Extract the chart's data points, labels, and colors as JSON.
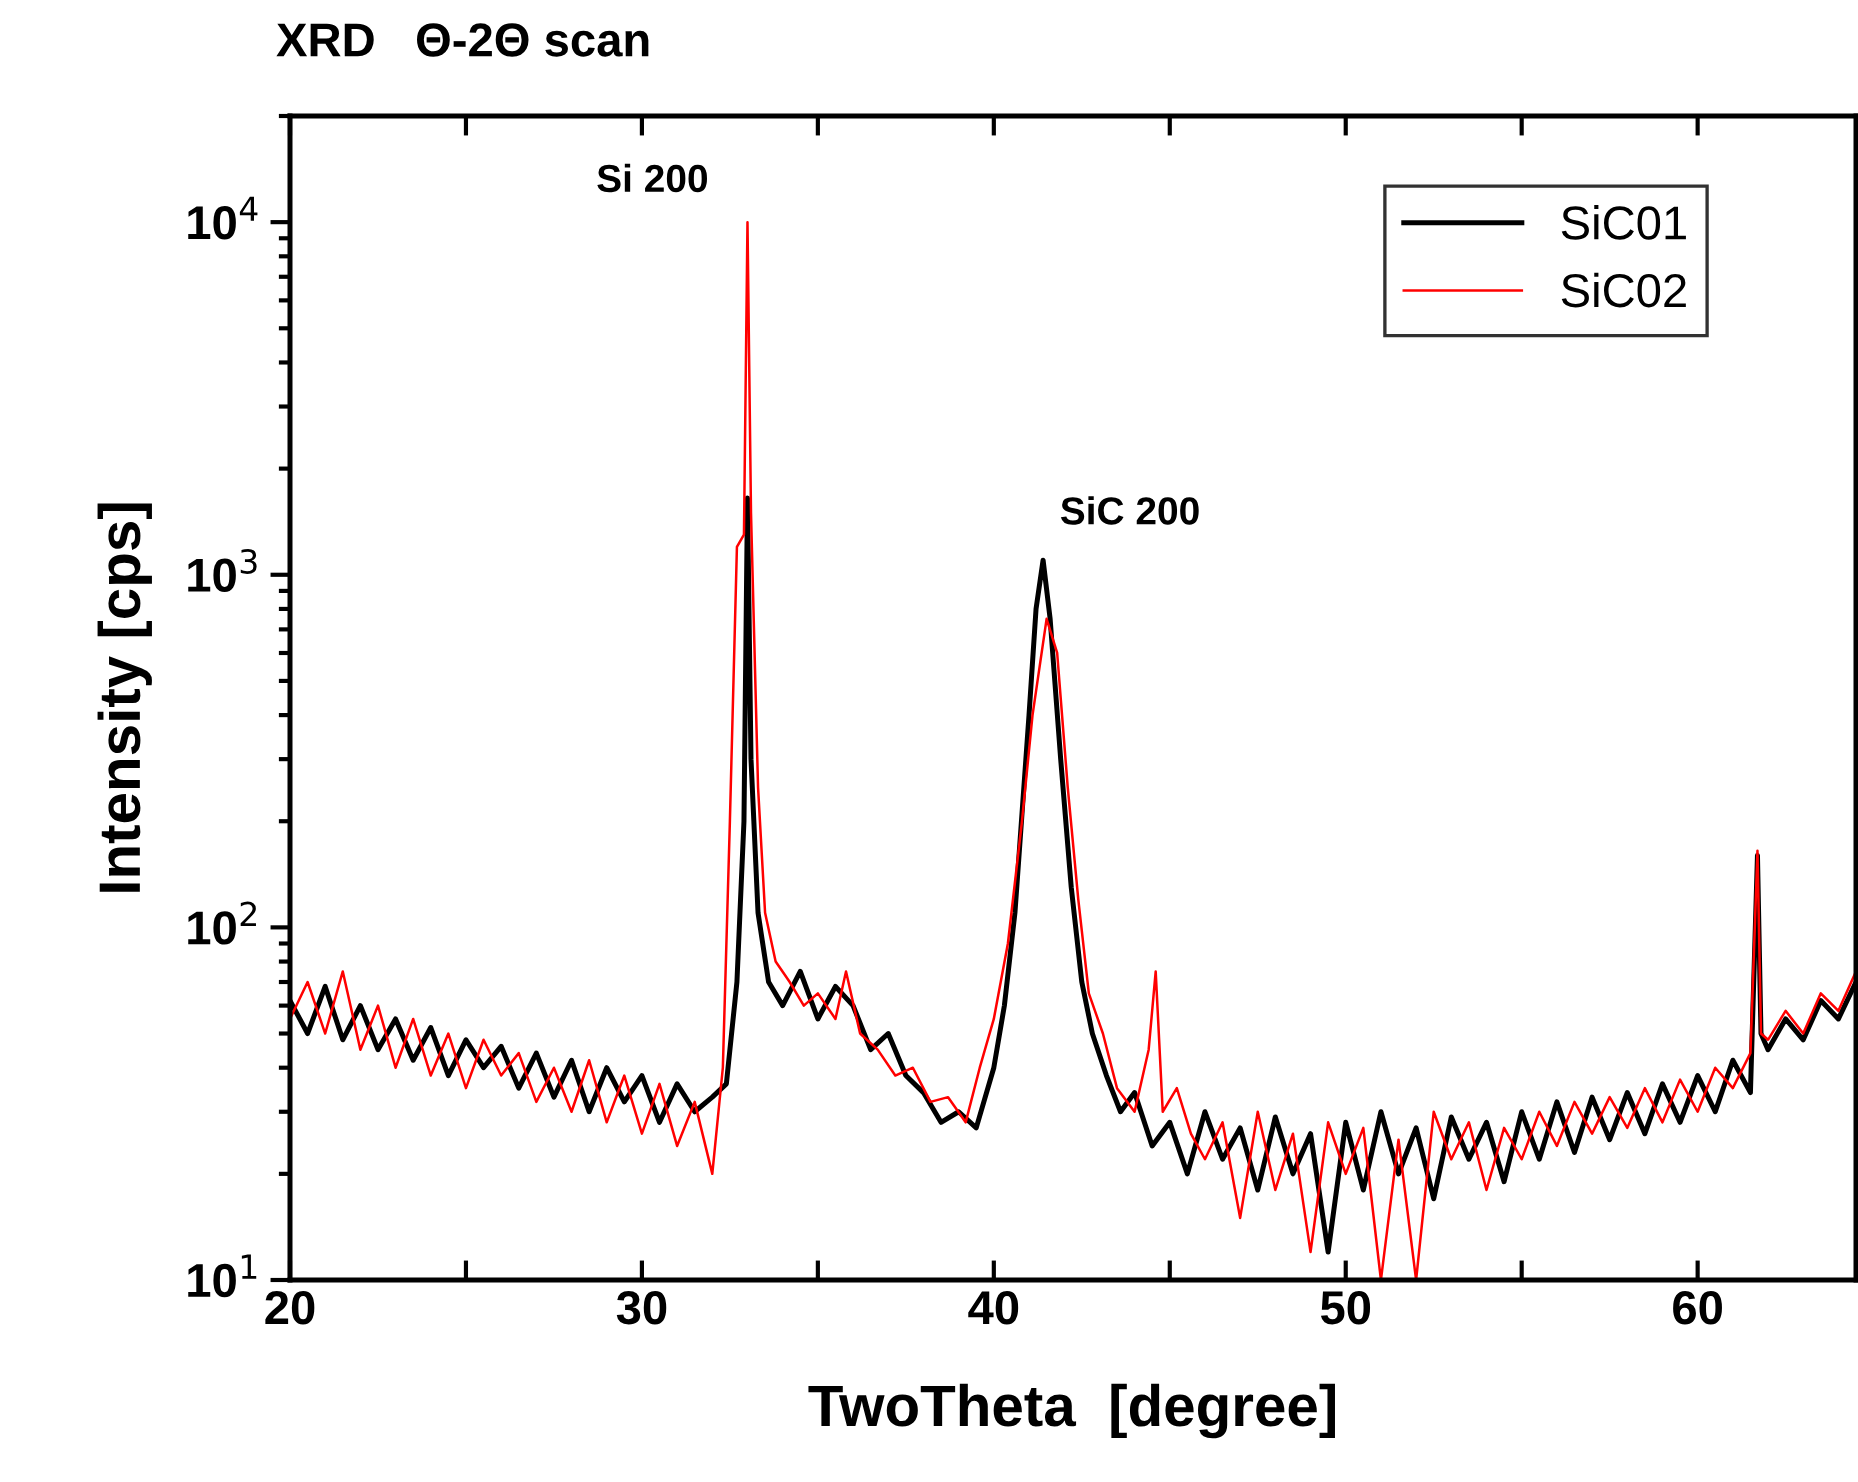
{
  "chart_data": {
    "type": "line",
    "title": "XRD   Θ-2Θ scan",
    "xlabel": "TwoTheta  [degree]",
    "ylabel": "Intensity [cps]",
    "log": "y",
    "xlim": [
      20,
      64.5
    ],
    "ylim": [
      10,
      20000
    ],
    "xticks": [
      20,
      {
        "value": 25,
        "label": null
      },
      30,
      {
        "value": 35,
        "label": null
      },
      40,
      {
        "value": 45,
        "label": null
      },
      50,
      {
        "value": 55,
        "label": null
      },
      60
    ],
    "yticks": [
      {
        "value": 10,
        "label": "10$^{1}$"
      },
      {
        "value": 100,
        "label": "10$^{2}$"
      },
      {
        "value": 1000,
        "label": "10$^{3}$"
      },
      {
        "value": 10000,
        "label": "10$^{4}$"
      }
    ],
    "grid": false,
    "legend": "top right",
    "line_style": "solid",
    "marker": "none",
    "annotations": [
      {
        "text": "Si 200",
        "x": 33.0,
        "y": 10000
      },
      {
        "text": "SiC 200",
        "x": 41.4,
        "y": 1100
      }
    ],
    "series": [
      {
        "name": "SiC01",
        "color": "#000000",
        "x": [
          20,
          20.5,
          21,
          21.5,
          22,
          22.5,
          23,
          23.5,
          24,
          24.5,
          25,
          25.5,
          26,
          26.5,
          27,
          27.5,
          28,
          28.5,
          29,
          29.5,
          30,
          30.5,
          31,
          31.5,
          32,
          32.4,
          32.7,
          32.9,
          33.0,
          33.1,
          33.3,
          33.6,
          34,
          34.5,
          35,
          35.5,
          36,
          36.5,
          37,
          37.5,
          38,
          38.5,
          39,
          39.5,
          40,
          40.3,
          40.6,
          41,
          41.2,
          41.4,
          41.6,
          41.9,
          42.2,
          42.5,
          42.8,
          43.2,
          43.6,
          44,
          44.5,
          45,
          45.5,
          46,
          46.5,
          47,
          47.5,
          48,
          48.5,
          49,
          49.5,
          50,
          50.5,
          51,
          51.5,
          52,
          52.5,
          53,
          53.5,
          54,
          54.5,
          55,
          55.5,
          56,
          56.5,
          57,
          57.5,
          58,
          58.5,
          59,
          59.5,
          60,
          60.5,
          61,
          61.5,
          61.7,
          61.8,
          62,
          62.5,
          63,
          63.5,
          64,
          64.5
        ],
        "values": [
          62,
          50,
          68,
          48,
          60,
          45,
          55,
          42,
          52,
          38,
          48,
          40,
          46,
          35,
          44,
          33,
          42,
          30,
          40,
          32,
          38,
          28,
          36,
          30,
          33,
          36,
          70,
          200,
          1650,
          300,
          110,
          70,
          60,
          75,
          55,
          68,
          60,
          45,
          50,
          38,
          34,
          28,
          30,
          27,
          40,
          60,
          110,
          400,
          800,
          1100,
          750,
          300,
          130,
          70,
          50,
          38,
          30,
          34,
          24,
          28,
          20,
          30,
          22,
          27,
          18,
          29,
          20,
          26,
          12,
          28,
          18,
          30,
          20,
          27,
          17,
          29,
          22,
          28,
          19,
          30,
          22,
          32,
          23,
          33,
          25,
          34,
          26,
          36,
          28,
          38,
          30,
          42,
          34,
          160,
          50,
          45,
          55,
          48,
          62,
          55,
          70
        ]
      },
      {
        "name": "SiC02",
        "color": "#ff0000",
        "x": [
          20,
          20.5,
          21,
          21.5,
          22,
          22.5,
          23,
          23.5,
          24,
          24.5,
          25,
          25.5,
          26,
          26.5,
          27,
          27.5,
          28,
          28.5,
          29,
          29.5,
          30,
          30.5,
          31,
          31.5,
          32,
          32.3,
          32.5,
          32.7,
          32.9,
          33.0,
          33.1,
          33.3,
          33.5,
          33.8,
          34.2,
          34.6,
          35,
          35.5,
          35.8,
          36.2,
          36.7,
          37.2,
          37.7,
          38.2,
          38.7,
          39.2,
          39.6,
          40,
          40.4,
          40.8,
          41.1,
          41.5,
          41.8,
          42.1,
          42.4,
          42.7,
          43.1,
          43.5,
          44,
          44.4,
          44.6,
          44.8,
          45.2,
          45.6,
          46,
          46.5,
          47,
          47.5,
          48,
          48.5,
          49,
          49.5,
          50,
          50.5,
          51,
          51.5,
          52,
          52.5,
          53,
          53.5,
          54,
          54.5,
          55,
          55.5,
          56,
          56.5,
          57,
          57.5,
          58,
          58.5,
          59,
          59.5,
          60,
          60.5,
          61,
          61.5,
          61.7,
          61.8,
          62,
          62.5,
          63,
          63.5,
          64,
          64.5
        ],
        "values": [
          55,
          70,
          50,
          75,
          45,
          60,
          40,
          55,
          38,
          50,
          35,
          48,
          38,
          44,
          32,
          40,
          30,
          42,
          28,
          38,
          26,
          36,
          24,
          32,
          20,
          40,
          200,
          1200,
          1300,
          10000,
          1500,
          250,
          110,
          80,
          70,
          60,
          65,
          55,
          75,
          50,
          45,
          38,
          40,
          32,
          33,
          28,
          40,
          55,
          90,
          200,
          400,
          750,
          600,
          250,
          120,
          65,
          50,
          35,
          30,
          45,
          75,
          30,
          35,
          26,
          22,
          28,
          15,
          30,
          18,
          26,
          12,
          28,
          20,
          27,
          10,
          25,
          10,
          30,
          22,
          28,
          18,
          27,
          22,
          30,
          24,
          32,
          26,
          33,
          27,
          35,
          28,
          37,
          30,
          40,
          35,
          44,
          165,
          50,
          48,
          58,
          50,
          65,
          58,
          75
        ]
      }
    ]
  }
}
